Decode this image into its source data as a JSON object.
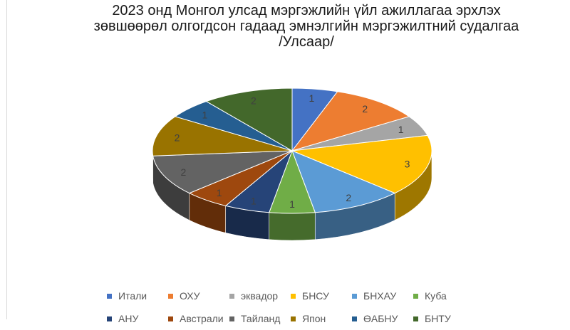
{
  "chart_data": {
    "type": "pie",
    "title_lines": [
      "2023 онд Монгол улсад мэргэжлийн үйл ажиллагаа эрхлэх",
      "зөвшөөрөл олгогдсон гадаад эмнэлгийн мэргэжилтний судалгаа",
      "/Улсаар/"
    ],
    "categories": [
      "Итали",
      "ОХУ",
      "эквадор",
      "БНСУ",
      "БНХАУ",
      "Куба",
      "АНУ",
      "Австрали",
      "Тайланд",
      "Япон",
      "ӨАБНУ",
      "БНТУ"
    ],
    "values": [
      1,
      2,
      1,
      3,
      2,
      1,
      1,
      1,
      2,
      2,
      1,
      2
    ],
    "colors": [
      "#4472C4",
      "#ED7D31",
      "#A5A5A5",
      "#FFC000",
      "#5B9BD5",
      "#70AD47",
      "#264478",
      "#9E480E",
      "#636363",
      "#997300",
      "#255E91",
      "#43682B"
    ],
    "data_labels": true,
    "legend_position": "bottom",
    "style": "3d-pie"
  }
}
